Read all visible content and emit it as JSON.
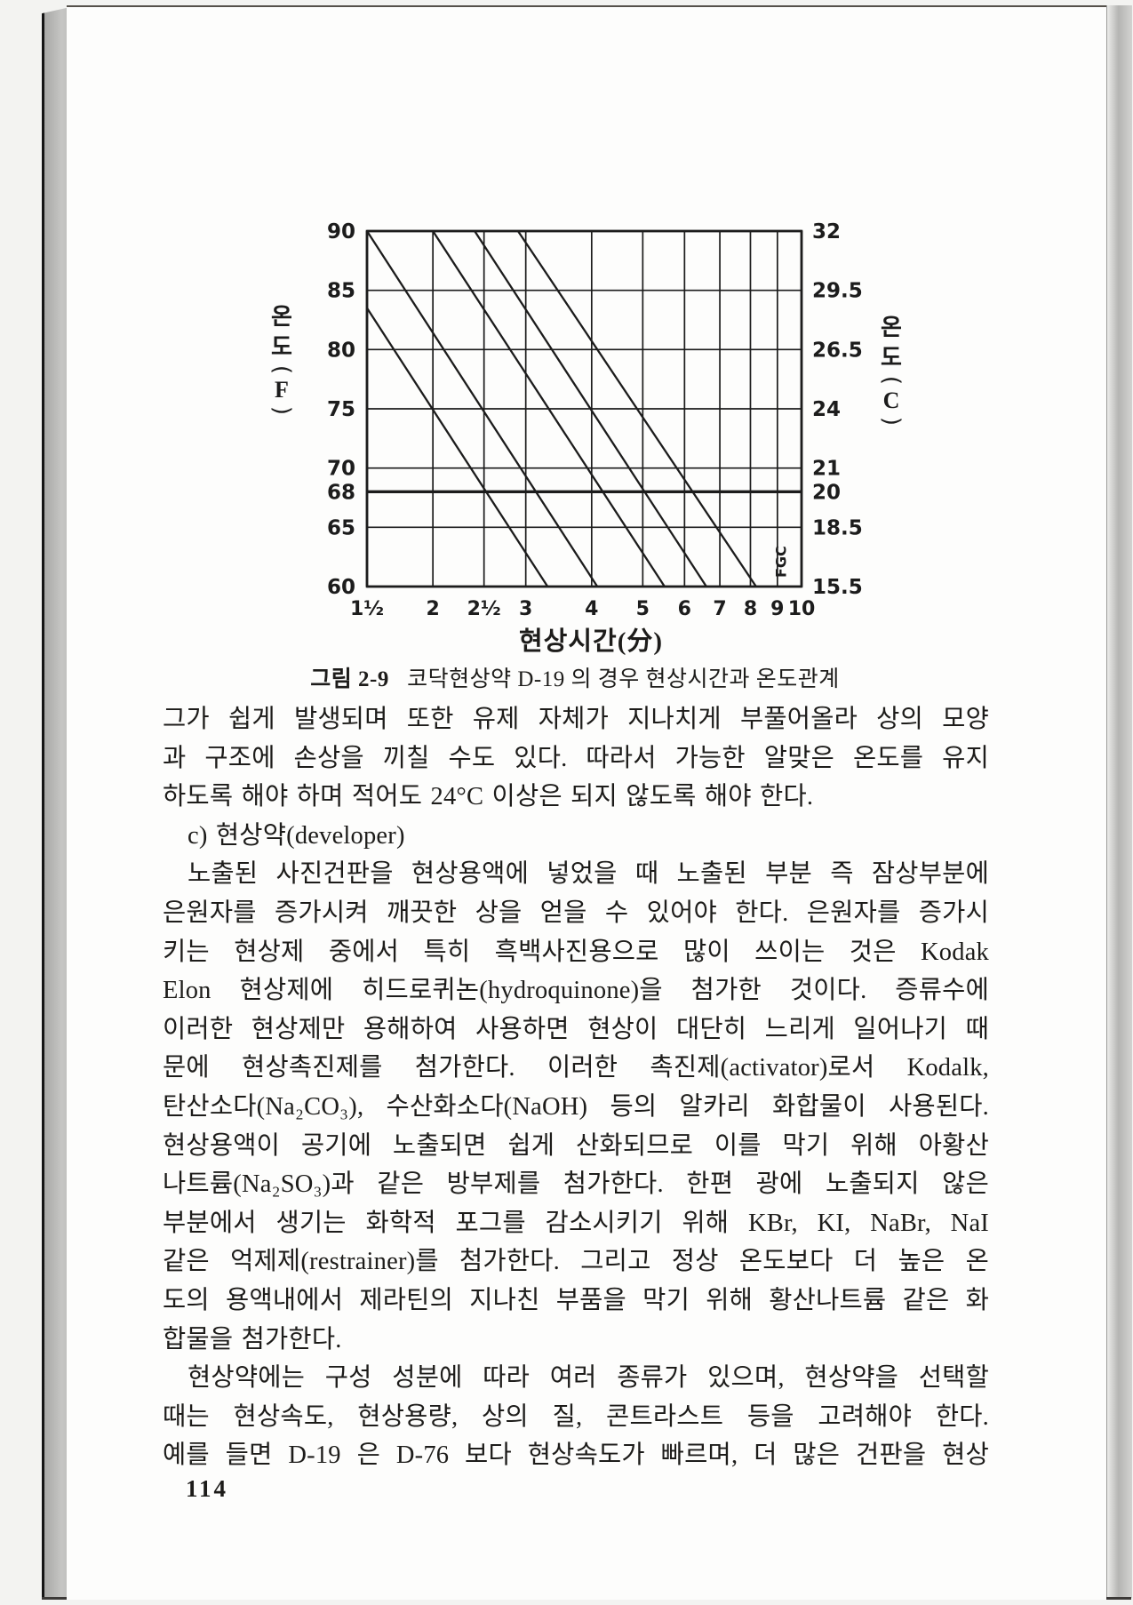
{
  "figure": {
    "caption_figno": "그림 2-9",
    "caption_text": "코닥현상약 D-19 의 경우 현상시간과 온도관계",
    "xlabel": "현상시간(分)",
    "left_axis": {
      "c1": "온",
      "c2": "도",
      "open": "(",
      "unit": "F",
      "close": ")"
    },
    "right_axis": {
      "c1": "온",
      "c2": "도",
      "open": "(",
      "unit": "C",
      "close": ")"
    },
    "inline_label": "FGC"
  },
  "chart_data": {
    "type": "line",
    "title": "그림 2-9 코닥현상약 D-19의 경우 현상시간과 온도관계",
    "xlabel": "현상시간(分)",
    "ylabel_left": "온도(F)",
    "ylabel_right": "온도(C)",
    "x_scale": "log",
    "grid": true,
    "xlim": [
      1.5,
      10
    ],
    "ylim_f": [
      60,
      90
    ],
    "x_ticks": [
      "1½",
      "2",
      "2½",
      "3",
      "4",
      "5",
      "6",
      "7",
      "8",
      "9",
      "10"
    ],
    "x_tick_values": [
      1.5,
      2,
      2.5,
      3,
      4,
      5,
      6,
      7,
      8,
      9,
      10
    ],
    "y_ticks_f": [
      90,
      85,
      80,
      75,
      70,
      68,
      65,
      60
    ],
    "y_ticks_c": [
      "32",
      "29.5",
      "26.5",
      "24",
      "21",
      "20",
      "18.5",
      "15.5"
    ],
    "emphasized_y_f": 68,
    "emphasized_y_c": "20",
    "annotation": "FGC",
    "series": [
      {
        "name": "time-temp-line-1",
        "points": [
          [
            1.5,
            83.5
          ],
          [
            3.3,
            60
          ]
        ]
      },
      {
        "name": "time-temp-line-2",
        "points": [
          [
            1.5,
            90
          ],
          [
            4.1,
            60
          ]
        ]
      },
      {
        "name": "time-temp-line-3",
        "points": [
          [
            2.0,
            90
          ],
          [
            5.5,
            60
          ]
        ]
      },
      {
        "name": "time-temp-line-4",
        "points": [
          [
            2.4,
            90
          ],
          [
            6.6,
            60
          ]
        ]
      },
      {
        "name": "time-temp-line-5",
        "points": [
          [
            2.9,
            90
          ],
          [
            8.2,
            60
          ]
        ]
      }
    ]
  },
  "body": {
    "lines": [
      "그가 쉽게 발생되며 또한 유제 자체가 지나치게 부풀어올라 상의 모양",
      "과 구조에 손상을 끼칠 수도 있다. 따라서 가능한 알맞은 온도를 유지",
      "하도록 해야 하며 적어도 24°C 이상은 되지 않도록 해야 한다.",
      "c) 현상약(developer)",
      "노출된 사진건판을 현상용액에 넣었을 때 노출된 부분 즉 잠상부분에",
      "은원자를 증가시켜 깨끗한 상을 얻을 수 있어야 한다. 은원자를 증가시",
      "키는 현상제 중에서 특히 흑백사진용으로 많이 쓰이는 것은 Kodak",
      "Elon 현상제에 히드로퀴논(hydroquinone)을 첨가한 것이다. 증류수에",
      "이러한 현상제만 용해하여 사용하면 현상이 대단히 느리게 일어나기 때",
      "문에 현상촉진제를 첨가한다. 이러한 촉진제(activator)로서 Kodalk,",
      "탄산소다(Na₂CO₃), 수산화소다(NaOH) 등의 알카리 화합물이 사용된다.",
      "현상용액이 공기에 노출되면 쉽게 산화되므로 이를 막기 위해 아황산",
      "나트륨(Na₂SO₃)과 같은 방부제를 첨가한다. 한편 광에 노출되지 않은",
      "부분에서 생기는 화학적 포그를 감소시키기 위해 KBr, KI, NaBr, NaI",
      "같은 억제제(restrainer)를 첨가한다. 그리고 정상 온도보다 더 높은 온",
      "도의 용액내에서 제라틴의 지나친 부품을 막기 위해 황산나트륨 같은 화",
      "합물을 첨가한다.",
      "현상약에는 구성 성분에 따라 여러 종류가 있으며, 현상약을 선택할",
      "때는 현상속도, 현상용량, 상의 질, 콘트라스트 등을 고려해야 한다.",
      "예를 들면 D-19 은 D-76 보다 현상속도가 빠르며, 더 많은 건판을 현상"
    ]
  },
  "page_number": "114"
}
